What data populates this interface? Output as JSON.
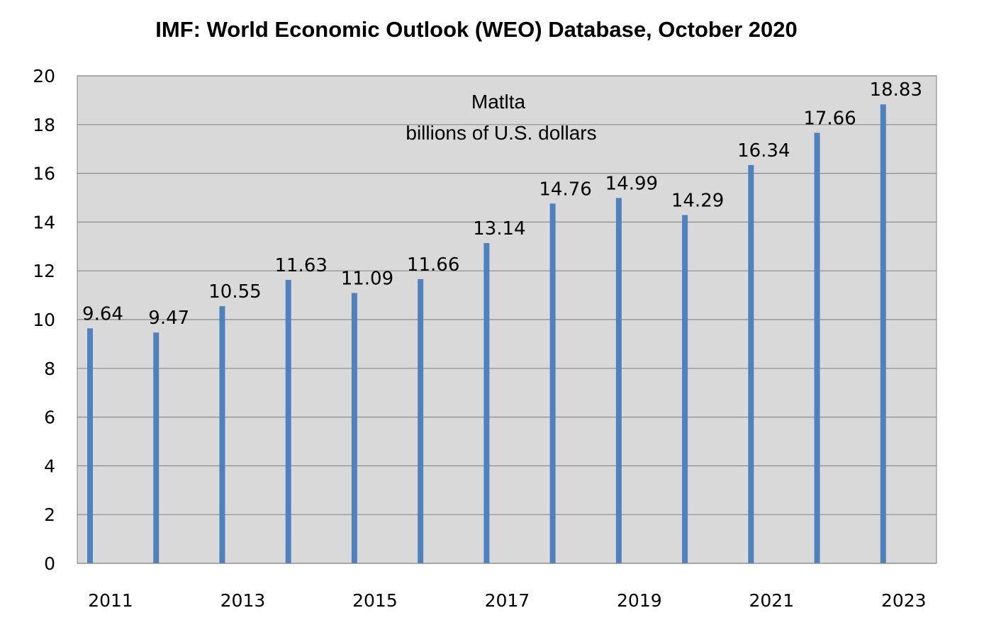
{
  "chart_data": {
    "type": "bar",
    "title": "IMF: World Economic Outlook (WEO) Database, October 2020",
    "subtitle_lines": [
      "Matlta",
      "billions of U.S. dollars"
    ],
    "xlabel": "",
    "ylabel": "",
    "categories": [
      "2011",
      "2012",
      "2013",
      "2014",
      "2015",
      "2016",
      "2017",
      "2018",
      "2019",
      "2020",
      "2021",
      "2022",
      "2023"
    ],
    "x_tick_labels": [
      "2011",
      "",
      "2013",
      "",
      "2015",
      "",
      "2017",
      "",
      "2019",
      "",
      "2021",
      "",
      "2023"
    ],
    "values": [
      9.64,
      9.47,
      10.55,
      11.63,
      11.09,
      11.66,
      13.14,
      14.76,
      14.99,
      14.29,
      16.34,
      17.66,
      18.83
    ],
    "data_labels": [
      "9.64",
      "9.47",
      "10.55",
      "11.63",
      "11.09",
      "11.66",
      "13.14",
      "14.76",
      "14.99",
      "14.29",
      "16.34",
      "17.66",
      "18.83"
    ],
    "ylim": [
      0,
      20
    ],
    "yticks": [
      0,
      2,
      4,
      6,
      8,
      10,
      12,
      14,
      16,
      18,
      20
    ],
    "grid": true,
    "legend": false,
    "colors": {
      "bar": "#4f81bd",
      "plot_bg": "#d9d9d9",
      "grid": "#8c8c8c",
      "axis": "#808080"
    }
  }
}
